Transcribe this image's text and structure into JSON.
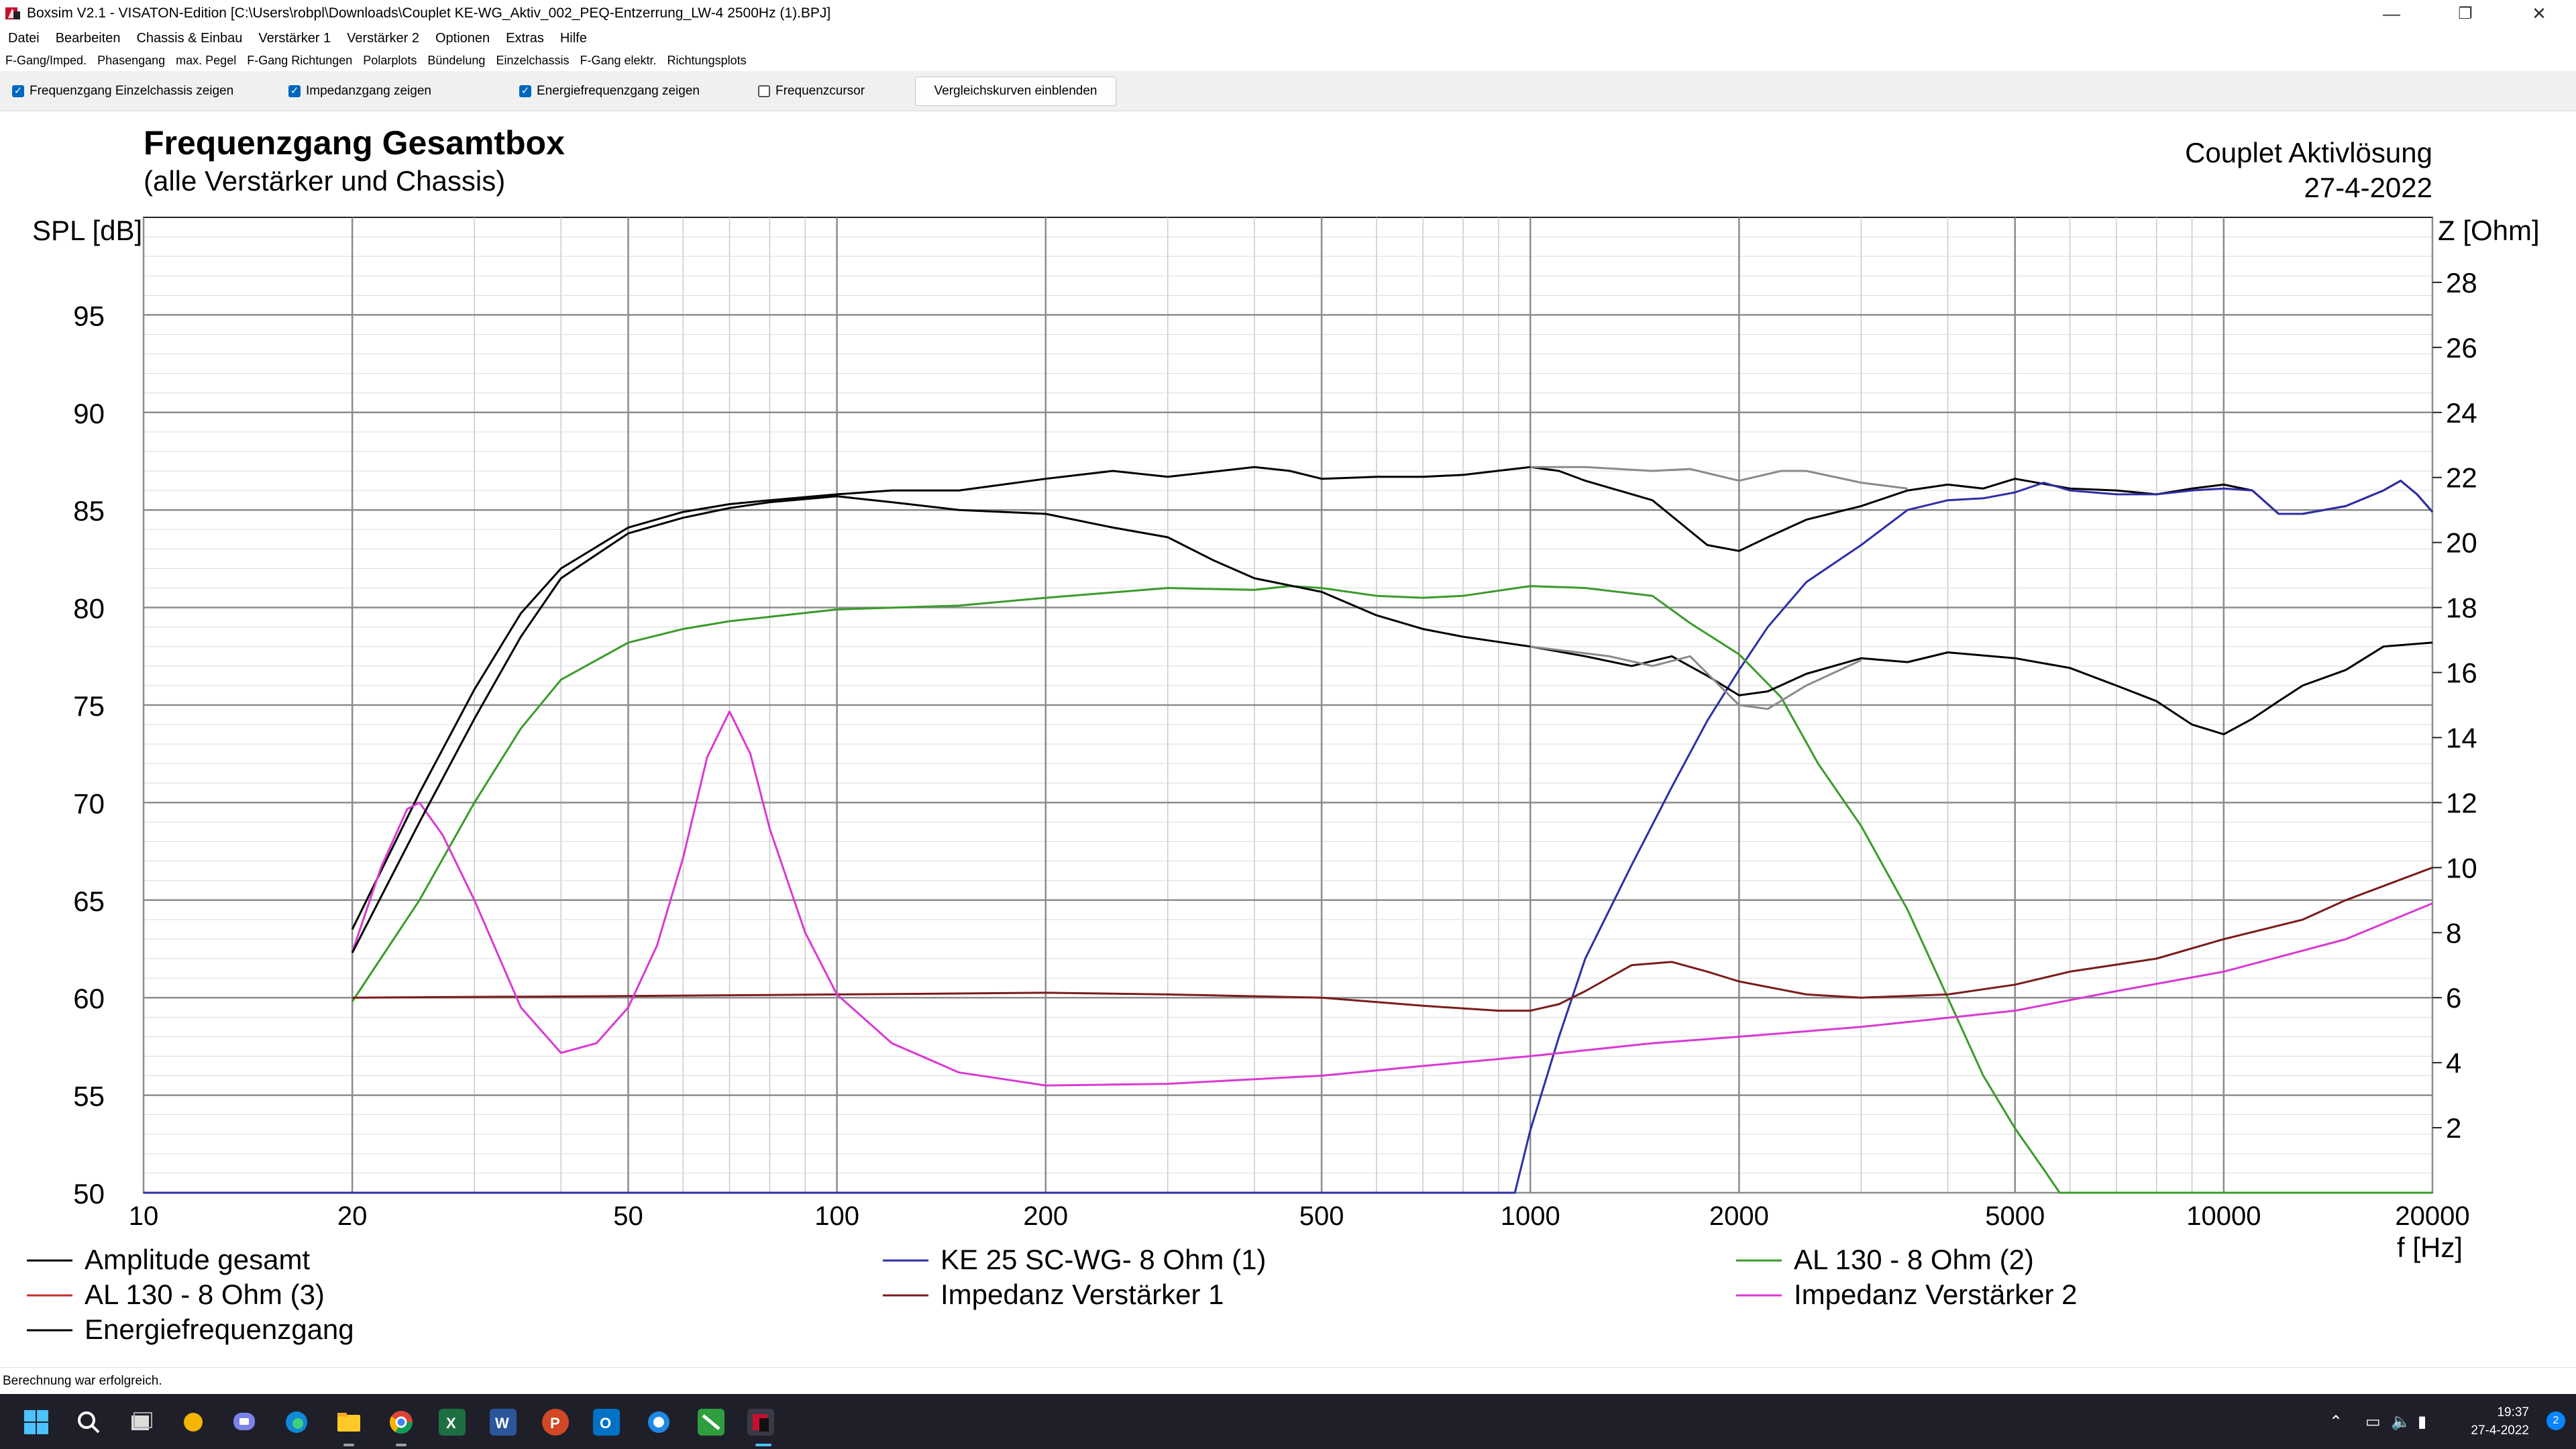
{
  "window": {
    "title": "Boxsim V2.1 - VISATON-Edition [C:\\Users\\robpl\\Downloads\\Couplet KE-WG_Aktiv_002_PEQ-Entzerrung_LW-4 2500Hz (1).BPJ]",
    "minimize": "—",
    "maximize": "❐",
    "close": "✕"
  },
  "menu": [
    "Datei",
    "Bearbeiten",
    "Chassis & Einbau",
    "Verstärker 1",
    "Verstärker 2",
    "Optionen",
    "Extras",
    "Hilfe"
  ],
  "tabs": [
    "F-Gang/Imped.",
    "Phasengang",
    "max. Pegel",
    "F-Gang Richtungen",
    "Polarplots",
    "Bündelung",
    "Einzelchassis",
    "F-Gang elektr.",
    "Richtungsplots"
  ],
  "toolbar": {
    "checkboxes": [
      {
        "label": "Frequenzgang Einzelchassis zeigen",
        "checked": true
      },
      {
        "label": "Impedanzgang zeigen",
        "checked": true
      },
      {
        "label": "Energiefrequenzgang zeigen",
        "checked": true
      },
      {
        "label": "Frequenzcursor",
        "checked": false
      }
    ],
    "button": "Vergleichskurven einblenden"
  },
  "status": "Berechnung war erfolgreich.",
  "taskbar": {
    "time": "19:37",
    "date": "27-4-2022",
    "badge": "2",
    "icons": [
      "windows-start",
      "search",
      "task-view",
      "widgets",
      "teams",
      "edge",
      "file-explorer",
      "chrome",
      "excel",
      "word",
      "powerpoint",
      "outlook",
      "app-blue",
      "app-green",
      "boxsim"
    ]
  },
  "chart_data": {
    "type": "line",
    "title": "Frequenzgang Gesamtbox",
    "subtitle": "(alle Verstärker und Chassis)",
    "project": "Couplet Aktivlösung",
    "date": "27-4-2022",
    "ylabel": "SPL [dB]",
    "y2label": "Z [Ohm]",
    "xlabel": "f [Hz]",
    "x_scale": "log",
    "xlim": [
      10,
      20000
    ],
    "ylim": [
      50,
      100
    ],
    "y2lim": [
      0,
      30
    ],
    "x_ticks": [
      10,
      20,
      50,
      100,
      200,
      500,
      1000,
      2000,
      5000,
      10000,
      20000
    ],
    "y_ticks": [
      50,
      55,
      60,
      65,
      70,
      75,
      80,
      85,
      90,
      95
    ],
    "y2_ticks": [
      2,
      4,
      6,
      8,
      10,
      12,
      14,
      16,
      18,
      20,
      22,
      24,
      26,
      28
    ],
    "grid": true,
    "legend_position": "bottom",
    "series": [
      {
        "name": "Amplitude gesamt",
        "axis": "spl",
        "color": "#000000",
        "x": [
          20,
          25,
          30,
          35,
          40,
          50,
          60,
          70,
          80,
          100,
          120,
          150,
          200,
          250,
          300,
          400,
          450,
          500,
          600,
          700,
          800,
          1000,
          1100,
          1200,
          1500,
          1800,
          2000,
          2200,
          2500,
          3000,
          3500,
          4000,
          4500,
          5000,
          6000,
          7000,
          8000,
          9000,
          10000,
          11000,
          12000,
          13000,
          15000,
          17000,
          18000,
          19000,
          20000
        ],
        "y": [
          63.5,
          70.5,
          75.8,
          79.7,
          82.0,
          84.1,
          84.9,
          85.3,
          85.5,
          85.8,
          86.0,
          86.0,
          86.6,
          87.0,
          86.7,
          87.2,
          87.0,
          86.6,
          86.7,
          86.7,
          86.8,
          87.2,
          87.0,
          86.5,
          85.5,
          83.2,
          82.9,
          83.6,
          84.5,
          85.2,
          86.0,
          86.3,
          86.1,
          86.6,
          86.1,
          86.0,
          85.8,
          86.1,
          86.3,
          86.0,
          84.8,
          84.8,
          85.2,
          86.0,
          86.5,
          85.8,
          84.9
        ]
      },
      {
        "name": "KE 25 SC-WG- 8 Ohm    (1)",
        "axis": "spl",
        "color": "#2e2ea8",
        "x": [
          10,
          950,
          1000,
          1100,
          1200,
          1400,
          1600,
          1800,
          2000,
          2200,
          2500,
          3000,
          3500,
          4000,
          4500,
          5000,
          5500,
          6000,
          7000,
          8000,
          9000,
          10000,
          11000,
          12000,
          13000,
          15000,
          17000,
          18000,
          19000,
          20000
        ],
        "y": [
          50,
          50.0,
          53.2,
          58.0,
          62.0,
          66.8,
          70.8,
          74.2,
          76.8,
          79.0,
          81.3,
          83.2,
          85.0,
          85.5,
          85.6,
          85.9,
          86.4,
          86.0,
          85.8,
          85.8,
          86.0,
          86.1,
          86.0,
          84.8,
          84.8,
          85.2,
          86.0,
          86.5,
          85.8,
          84.9
        ]
      },
      {
        "name": "AL 130 - 8 Ohm (2)",
        "axis": "spl",
        "color": "#3c9a2c",
        "x": [
          20,
          25,
          30,
          35,
          40,
          50,
          60,
          70,
          100,
          150,
          200,
          300,
          400,
          450,
          500,
          600,
          700,
          800,
          1000,
          1200,
          1500,
          1700,
          2000,
          2300,
          2600,
          3000,
          3500,
          4000,
          4500,
          5000,
          5500,
          5800,
          6000,
          20000
        ],
        "y": [
          59.8,
          65.0,
          70.0,
          73.8,
          76.3,
          78.2,
          78.9,
          79.3,
          79.9,
          80.1,
          80.5,
          81.0,
          80.9,
          81.1,
          81.0,
          80.6,
          80.5,
          80.6,
          81.1,
          81.0,
          80.6,
          79.2,
          77.6,
          75.4,
          72.0,
          68.8,
          64.5,
          60.0,
          56.0,
          53.3,
          51.2,
          50.0,
          50.0,
          50.0
        ]
      },
      {
        "name": "AL 130 - 8 Ohm (3)",
        "axis": "spl",
        "color": "#c03030",
        "x": [],
        "y": []
      },
      {
        "name": "Impedanz Verstärker 1",
        "axis": "z",
        "color": "#7a1c1c",
        "x": [
          20,
          50,
          100,
          200,
          300,
          500,
          700,
          900,
          1000,
          1100,
          1200,
          1400,
          1600,
          1800,
          2000,
          2500,
          3000,
          4000,
          5000,
          6000,
          8000,
          10000,
          13000,
          15000,
          20000
        ],
        "y": [
          6.0,
          6.05,
          6.1,
          6.15,
          6.1,
          6.0,
          5.75,
          5.6,
          5.6,
          5.8,
          6.2,
          7.0,
          7.1,
          6.8,
          6.5,
          6.1,
          6.0,
          6.1,
          6.4,
          6.8,
          7.2,
          7.8,
          8.4,
          9.0,
          10.0
        ]
      },
      {
        "name": "Impedanz Verstärker 2",
        "axis": "z",
        "color": "#d93ad3",
        "x": [
          20,
          22,
          24,
          25,
          27,
          30,
          35,
          40,
          45,
          50,
          55,
          60,
          65,
          70,
          75,
          80,
          90,
          100,
          120,
          150,
          200,
          300,
          500,
          700,
          1000,
          1500,
          2000,
          3000,
          5000,
          7000,
          10000,
          15000,
          20000
        ],
        "y": [
          7.4,
          10.0,
          11.8,
          12.0,
          11.0,
          9.0,
          5.7,
          4.3,
          4.6,
          5.7,
          7.6,
          10.3,
          13.4,
          14.8,
          13.5,
          11.2,
          8.0,
          6.1,
          4.6,
          3.7,
          3.3,
          3.35,
          3.6,
          3.9,
          4.2,
          4.6,
          4.8,
          5.1,
          5.6,
          6.2,
          6.8,
          7.8,
          8.9
        ]
      },
      {
        "name": "Energiefrequenzgang",
        "axis": "spl",
        "color": "#000000",
        "x": [
          20,
          25,
          30,
          35,
          40,
          50,
          60,
          70,
          80,
          100,
          120,
          150,
          200,
          250,
          300,
          350,
          400,
          500,
          600,
          700,
          800,
          1000,
          1200,
          1400,
          1600,
          1800,
          2000,
          2200,
          2500,
          3000,
          3500,
          4000,
          5000,
          6000,
          7000,
          8000,
          9000,
          10000,
          11000,
          12000,
          13000,
          15000,
          17000,
          20000
        ],
        "y": [
          62.3,
          69.0,
          74.3,
          78.5,
          81.5,
          83.8,
          84.6,
          85.1,
          85.4,
          85.7,
          85.4,
          85.0,
          84.8,
          84.1,
          83.6,
          82.4,
          81.5,
          80.8,
          79.6,
          78.9,
          78.5,
          78.0,
          77.5,
          77.0,
          77.5,
          76.5,
          75.5,
          75.7,
          76.6,
          77.4,
          77.2,
          77.7,
          77.4,
          76.9,
          76.0,
          75.2,
          74.0,
          73.5,
          74.3,
          75.2,
          76.0,
          76.8,
          78.0,
          78.2
        ]
      },
      {
        "name": "",
        "axis": "spl",
        "color": "#8a8a8a",
        "x": [
          1000,
          1200,
          1500,
          1700,
          2000,
          2300,
          2500,
          3000,
          3500
        ],
        "y": [
          87.2,
          87.2,
          87.0,
          87.1,
          86.5,
          87.0,
          87.0,
          86.4,
          86.1
        ]
      },
      {
        "name": "",
        "axis": "spl",
        "color": "#8a8a8a",
        "x": [
          1000,
          1300,
          1500,
          1700,
          2000,
          2200,
          2500,
          3000
        ],
        "y": [
          78.0,
          77.5,
          77.0,
          77.5,
          75.0,
          74.8,
          76.0,
          77.3
        ]
      }
    ]
  }
}
